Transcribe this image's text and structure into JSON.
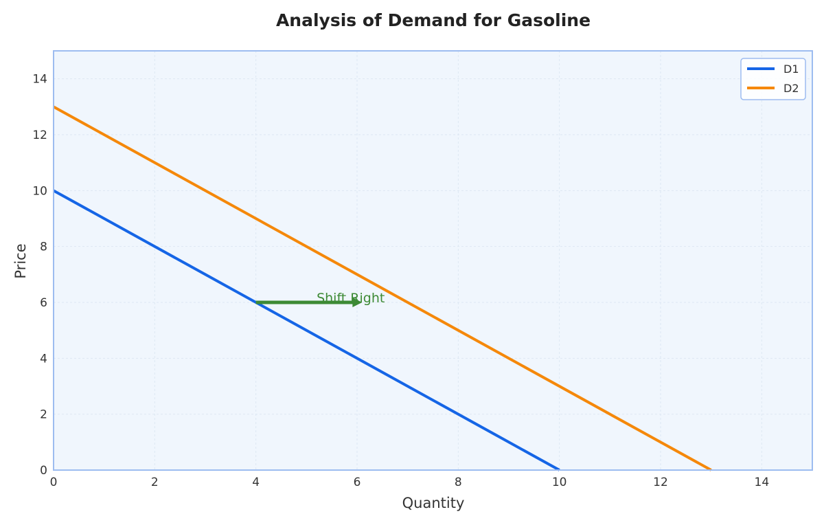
{
  "chart_data": {
    "type": "line",
    "title": "Analysis of Demand for Gasoline",
    "xlabel": "Quantity",
    "ylabel": "Price",
    "xlim": [
      0,
      15
    ],
    "ylim": [
      0,
      15
    ],
    "xticks": [
      0,
      2,
      4,
      6,
      8,
      10,
      12,
      14
    ],
    "yticks": [
      0,
      2,
      4,
      6,
      8,
      10,
      12,
      14
    ],
    "grid": true,
    "legend_position": "top-right",
    "series": [
      {
        "name": "D1",
        "color": "#1565e6",
        "x": [
          0,
          10
        ],
        "y": [
          10,
          0
        ]
      },
      {
        "name": "D2",
        "color": "#f5880a",
        "x": [
          0,
          13
        ],
        "y": [
          13,
          0
        ]
      }
    ],
    "annotation": {
      "text": "Shift Right",
      "color": "#3d8a35",
      "arrow_from": [
        4,
        6
      ],
      "arrow_to": [
        6.1,
        6
      ],
      "text_anchor_point": [
        5.2,
        6.1
      ]
    },
    "colors": {
      "plot_background": "#f0f6fd",
      "axes_border": "#9dbcf0"
    }
  }
}
